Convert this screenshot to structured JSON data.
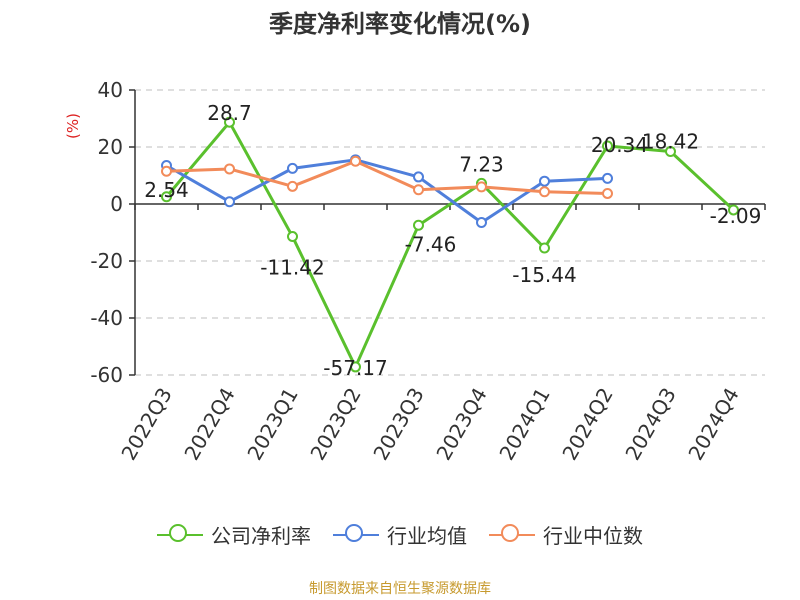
{
  "chart_data": {
    "type": "line",
    "title": "季度净利率变化情况(%)",
    "ylabel": "(%)",
    "ylim": [
      -60,
      40
    ],
    "yticks": [
      40,
      20,
      0,
      -20,
      -40,
      -60
    ],
    "categories": [
      "2022Q3",
      "2022Q4",
      "2023Q1",
      "2023Q2",
      "2023Q3",
      "2023Q4",
      "2024Q1",
      "2024Q2",
      "2024Q3",
      "2024Q4"
    ],
    "series": [
      {
        "name": "公司净利率",
        "color": "#5ac02d",
        "values": [
          2.54,
          28.7,
          -11.42,
          -57.17,
          -7.46,
          7.23,
          -15.44,
          20.34,
          18.42,
          -2.09
        ],
        "labels": [
          "2.54",
          "28.7",
          "-11.42",
          "-57.17",
          "-7.46",
          "7.23",
          "-15.44",
          "20.34",
          "18.42",
          "-2.09"
        ]
      },
      {
        "name": "行业均值",
        "color": "#4f7fdb",
        "values": [
          13.5,
          0.8,
          12.5,
          15.5,
          9.5,
          -6.5,
          8,
          9,
          null,
          null
        ]
      },
      {
        "name": "行业中位数",
        "color": "#f28b5a",
        "values": [
          11.5,
          12.3,
          6.2,
          15,
          5,
          6,
          4.3,
          3.7,
          null,
          null
        ]
      }
    ],
    "grid": true,
    "legend_position": "bottom"
  },
  "footer": {
    "source": "制图数据来自恒生聚源数据库"
  }
}
